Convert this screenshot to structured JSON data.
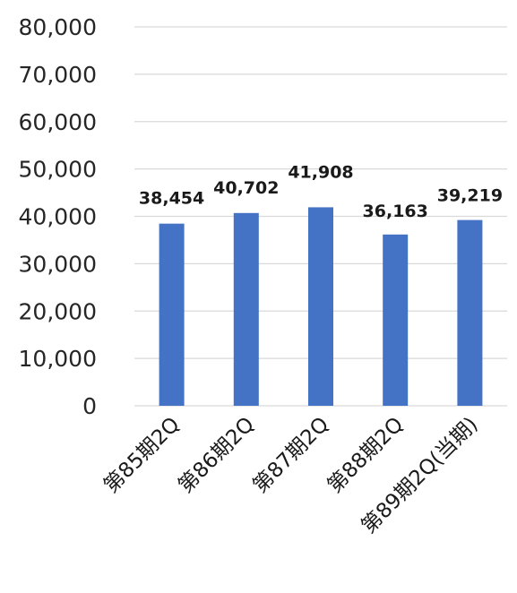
{
  "chart_data": {
    "type": "bar",
    "title": "",
    "xlabel": "",
    "ylabel": "",
    "categories": [
      "第85期2Q",
      "第86期2Q",
      "第87期2Q",
      "第88期2Q",
      "第89期2Q(当期)"
    ],
    "values": [
      38454,
      40702,
      41908,
      36163,
      39219
    ],
    "data_labels": [
      "38,454",
      "40,702",
      "41,908",
      "36,163",
      "39,219"
    ],
    "ylim": [
      0,
      80000
    ],
    "yticks": [
      0,
      10000,
      20000,
      30000,
      40000,
      50000,
      60000,
      70000,
      80000
    ],
    "ytick_labels": [
      "0",
      "10,000",
      "20,000",
      "30,000",
      "40,000",
      "50,000",
      "60,000",
      "70,000",
      "80,000"
    ],
    "grid": true,
    "legend": "none",
    "bar_color": "#4472c4",
    "grid_color": "#d9d9d9"
  }
}
